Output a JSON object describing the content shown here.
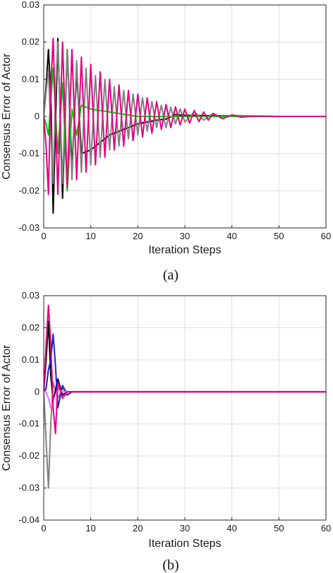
{
  "chart_data": [
    {
      "type": "line",
      "caption": "(a)",
      "xlabel": "Iteration Steps",
      "ylabel": "Consensus Error of Actor",
      "xlim": [
        0,
        60
      ],
      "ylim": [
        -0.03,
        0.03
      ],
      "x_ticks": [
        "0",
        "10",
        "20",
        "30",
        "40",
        "50",
        "60"
      ],
      "y_ticks": [
        "-0.03",
        "-0.02",
        "-0.01",
        "0",
        "0.01",
        "0.02",
        "0.03"
      ],
      "grid": true,
      "series": [
        {
          "color": "#000000",
          "x": [
            0,
            0.5,
            1,
            1.5,
            2,
            3,
            4,
            5,
            6,
            7,
            8,
            10,
            12,
            14,
            16,
            18,
            20,
            22,
            24,
            26,
            28,
            30,
            35,
            40,
            45,
            50,
            60
          ],
          "y": [
            0,
            0.008,
            0.018,
            0.006,
            -0.026,
            0.021,
            -0.022,
            0.018,
            -0.014,
            0.012,
            -0.01,
            -0.009,
            -0.007,
            -0.005,
            -0.004,
            -0.003,
            -0.002,
            -0.0015,
            -0.001,
            -0.0007,
            0.0005,
            0.0003,
            0.0002,
            0.0001,
            0,
            0,
            0
          ]
        },
        {
          "color": "#808080",
          "x": [
            0,
            1,
            1.5,
            2,
            2.5,
            3,
            4,
            5,
            6,
            7,
            8,
            9,
            10,
            11,
            12,
            13,
            14,
            15,
            16,
            17,
            18,
            19,
            20,
            21,
            22,
            23,
            24,
            25,
            26,
            27,
            28,
            29,
            30,
            32,
            34,
            36,
            38,
            40,
            45,
            50,
            60
          ],
          "y": [
            0,
            0.013,
            -0.004,
            -0.018,
            0.006,
            0.02,
            -0.018,
            0.018,
            -0.017,
            0.015,
            -0.015,
            0.013,
            -0.013,
            0.011,
            -0.011,
            0.01,
            -0.009,
            0.008,
            -0.008,
            0.007,
            -0.006,
            0.006,
            -0.005,
            0.005,
            -0.004,
            0.004,
            -0.003,
            0.003,
            -0.003,
            0.0025,
            -0.002,
            0.002,
            -0.0015,
            0.0012,
            -0.001,
            0.0008,
            -0.0005,
            0.0003,
            0.0001,
            0,
            0
          ]
        },
        {
          "color": "#00cc00",
          "x": [
            0,
            0.5,
            1,
            1.5,
            2,
            3,
            4,
            5,
            6,
            7,
            8,
            10,
            15,
            20,
            30,
            60
          ],
          "y": [
            0,
            -0.002,
            -0.005,
            0.004,
            0.013,
            -0.01,
            0.009,
            -0.02,
            0.002,
            -0.005,
            0.003,
            0.002,
            0.001,
            0,
            0,
            0
          ]
        },
        {
          "color": "#e6007e",
          "x": [
            0,
            0.5,
            1,
            1.5,
            2,
            3,
            4,
            5,
            6,
            7,
            8,
            9,
            10,
            11,
            12,
            13,
            14,
            15,
            16,
            17,
            18,
            19,
            20,
            21,
            22,
            23,
            24,
            25,
            26,
            27,
            28,
            29,
            30,
            31,
            32,
            33,
            34,
            35,
            36,
            38,
            40,
            42,
            45,
            50,
            60
          ],
          "y": [
            0,
            -0.008,
            -0.021,
            0.008,
            0.021,
            -0.021,
            0.02,
            -0.019,
            0.018,
            -0.017,
            0.016,
            -0.015,
            0.014,
            -0.013,
            0.012,
            -0.011,
            0.01,
            -0.009,
            0.0085,
            -0.008,
            0.007,
            -0.0065,
            0.006,
            -0.0055,
            0.005,
            -0.0045,
            0.004,
            -0.0035,
            0.0032,
            -0.003,
            0.0026,
            -0.0023,
            0.002,
            -0.0018,
            0.0016,
            -0.0014,
            0.0012,
            -0.001,
            0.0008,
            -0.0006,
            0.0004,
            -0.0002,
            0.0001,
            0,
            0
          ]
        }
      ]
    },
    {
      "type": "line",
      "caption": "(b)",
      "xlabel": "Iteration Steps",
      "ylabel": "Consensus Error of Actor",
      "xlim": [
        0,
        60
      ],
      "ylim": [
        -0.04,
        0.03
      ],
      "x_ticks": [
        "0",
        "10",
        "20",
        "30",
        "40",
        "50",
        "60"
      ],
      "y_ticks": [
        "-0.04",
        "-0.03",
        "-0.02",
        "-0.01",
        "0",
        "0.01",
        "0.02",
        "0.03"
      ],
      "grid": true,
      "series": [
        {
          "color": "#808080",
          "x": [
            0,
            0.5,
            1,
            1.5,
            2,
            3,
            4,
            5,
            6,
            60
          ],
          "y": [
            0,
            -0.015,
            -0.03,
            -0.01,
            0.003,
            -0.002,
            0.001,
            0,
            0,
            0
          ]
        },
        {
          "color": "#000000",
          "x": [
            0,
            0.5,
            1,
            1.5,
            2,
            3,
            4,
            5,
            60
          ],
          "y": [
            0,
            0.01,
            0.022,
            0.005,
            -0.003,
            0.004,
            -0.001,
            0,
            0
          ]
        },
        {
          "color": "#1f1fd0",
          "x": [
            0,
            0.5,
            1,
            1.5,
            2,
            2.5,
            3,
            4,
            5,
            6,
            60
          ],
          "y": [
            0,
            0.001,
            0.007,
            0.01,
            0.018,
            0.008,
            -0.005,
            0.002,
            -0.001,
            0,
            0
          ]
        },
        {
          "color": "#ff66ff",
          "x": [
            0,
            0.5,
            1,
            1.5,
            2,
            3,
            4,
            5,
            60
          ],
          "y": [
            0,
            0,
            -0.002,
            -0.005,
            -0.003,
            0.001,
            0,
            0,
            0
          ]
        },
        {
          "color": "#e6007e",
          "x": [
            0,
            0.5,
            1,
            1.5,
            2,
            2.5,
            3,
            4,
            5,
            60
          ],
          "y": [
            0,
            0.015,
            0.027,
            0.015,
            -0.005,
            -0.013,
            0.003,
            -0.002,
            0,
            0
          ]
        }
      ]
    }
  ]
}
